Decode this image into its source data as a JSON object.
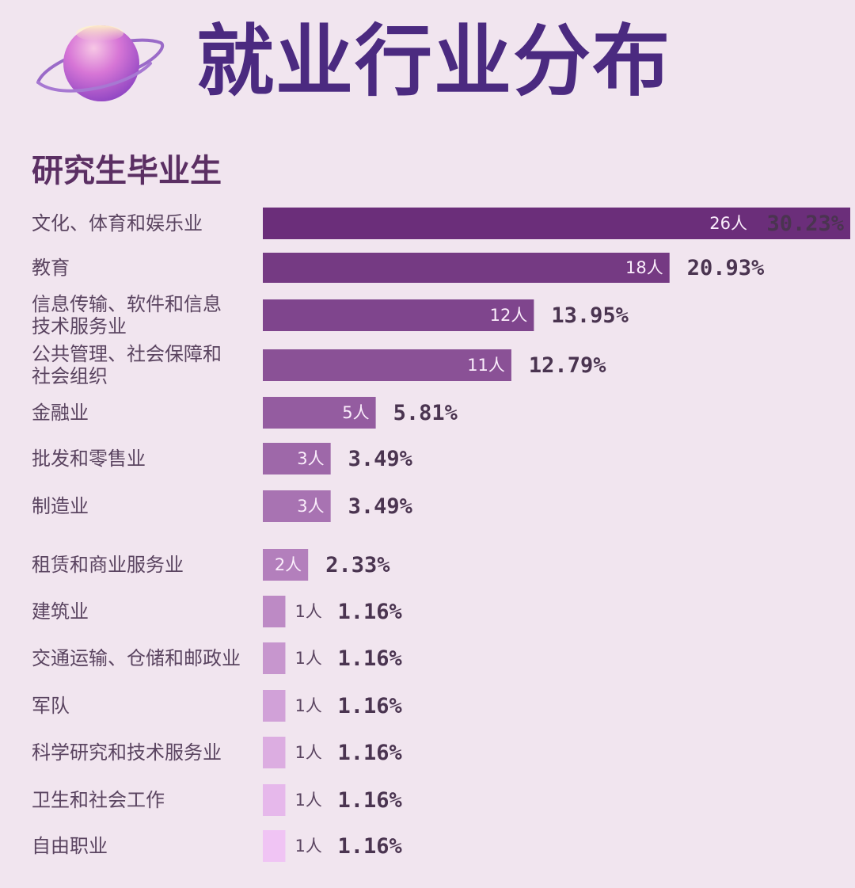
{
  "title": "就业行业分布",
  "subtitle": "研究生毕业生",
  "icons": {
    "header_icon": "planet-icon"
  },
  "colors": {
    "background": "#f1e5ef",
    "title": "#4b2a80",
    "bar_dark": "#6b2e7a",
    "bar_light": "#f0c4f4"
  },
  "chart_data": {
    "type": "bar",
    "orientation": "horizontal",
    "title": "就业行业分布",
    "subtitle": "研究生毕业生",
    "categories": [
      [
        "文化、体育和娱乐业"
      ],
      [
        "教育"
      ],
      [
        "信息传输、软件和信息",
        "技术服务业"
      ],
      [
        "公共管理、社会保障和",
        "社会组织"
      ],
      [
        "金融业"
      ],
      [
        "批发和零售业"
      ],
      [
        "制造业"
      ],
      [
        "租赁和商业服务业"
      ],
      [
        "建筑业"
      ],
      [
        "交通运输、仓储和邮政业"
      ],
      [
        "军队"
      ],
      [
        "科学研究和技术服务业"
      ],
      [
        "卫生和社会工作"
      ],
      [
        "自由职业"
      ]
    ],
    "counts": [
      26,
      18,
      12,
      11,
      5,
      3,
      3,
      2,
      1,
      1,
      1,
      1,
      1,
      1
    ],
    "count_labels": [
      "26人",
      "18人",
      "12人",
      "11人",
      "5人",
      "3人",
      "3人",
      "2人",
      "1人",
      "1人",
      "1人",
      "1人",
      "1人",
      "1人"
    ],
    "percent_labels": [
      "30.23%",
      "20.93%",
      "13.95%",
      "12.79%",
      "5.81%",
      "3.49%",
      "3.49%",
      "2.33%",
      "1.16%",
      "1.16%",
      "1.16%",
      "1.16%",
      "1.16%",
      "1.16%"
    ],
    "values": [
      30.23,
      20.93,
      13.95,
      12.79,
      5.81,
      3.49,
      3.49,
      2.33,
      1.16,
      1.16,
      1.16,
      1.16,
      1.16,
      1.16
    ],
    "unit": "%",
    "grid": false,
    "legend": "none"
  }
}
